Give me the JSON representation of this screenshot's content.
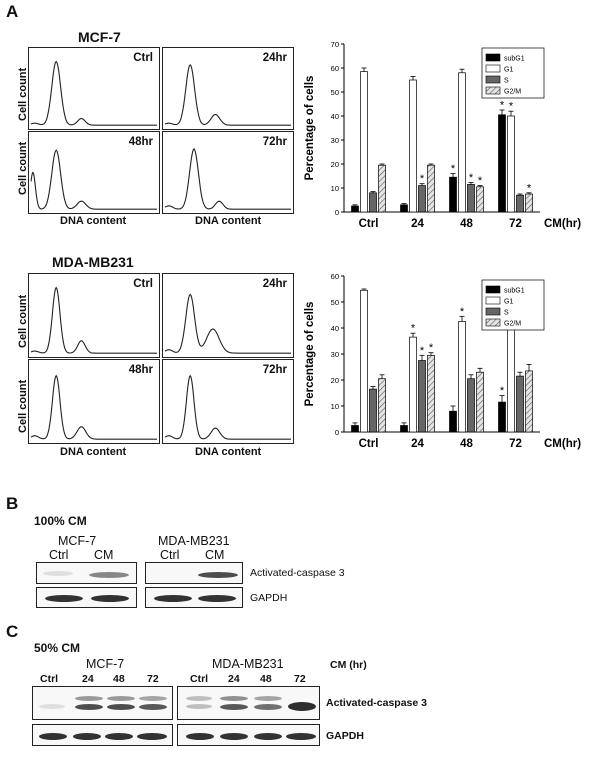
{
  "panel_a": {
    "letter": "A",
    "mcf7": {
      "title": "MCF-7",
      "hist_labels": [
        "Ctrl",
        "24hr",
        "48hr",
        "72hr"
      ],
      "y_label": "Cell count",
      "x_label": "DNA content"
    },
    "mda": {
      "title": "MDA-MB231",
      "hist_labels": [
        "Ctrl",
        "24hr",
        "48hr",
        "72hr"
      ],
      "y_label": "Cell count",
      "x_label": "DNA content"
    }
  },
  "chart_data": [
    {
      "type": "bar",
      "categories": [
        "Ctrl",
        "24",
        "48",
        "72"
      ],
      "x_unit": "CM(hr)",
      "ylabel": "Percentage of cells",
      "ylim": [
        0,
        70
      ],
      "yticks": [
        0,
        10,
        20,
        30,
        40,
        50,
        60,
        70
      ],
      "legend_position": "top-right",
      "series": [
        {
          "name": "subG1",
          "color": "#000000",
          "values": [
            2.5,
            3,
            14.5,
            40.5
          ],
          "errors": [
            0.5,
            0.5,
            1.5,
            2
          ],
          "sig": [
            false,
            false,
            true,
            true
          ]
        },
        {
          "name": "G1",
          "color": "#ffffff",
          "values": [
            58.5,
            55,
            58,
            40
          ],
          "errors": [
            1.5,
            1.5,
            1.5,
            2
          ],
          "sig": [
            false,
            false,
            false,
            true
          ]
        },
        {
          "name": "S",
          "color": "#666666",
          "values": [
            8,
            11,
            11.5,
            7
          ],
          "errors": [
            0.5,
            0.8,
            0.8,
            0.5
          ],
          "sig": [
            false,
            true,
            true,
            false
          ]
        },
        {
          "name": "G2/M",
          "color": "#cfcfcf",
          "values": [
            19.5,
            19.5,
            10.5,
            7.5
          ],
          "errors": [
            0.5,
            0.5,
            0.5,
            0.5
          ],
          "sig": [
            false,
            false,
            true,
            true
          ]
        }
      ]
    },
    {
      "type": "bar",
      "categories": [
        "Ctrl",
        "24",
        "48",
        "72"
      ],
      "x_unit": "CM(hr)",
      "ylabel": "Percentage of cells",
      "ylim": [
        0,
        60
      ],
      "yticks": [
        0,
        10,
        20,
        30,
        40,
        50,
        60
      ],
      "legend_position": "top-right",
      "series": [
        {
          "name": "subG1",
          "color": "#000000",
          "values": [
            2.5,
            2.5,
            8,
            11.5
          ],
          "errors": [
            1,
            1,
            2,
            2.5
          ],
          "sig": [
            false,
            false,
            false,
            true
          ]
        },
        {
          "name": "G1",
          "color": "#ffffff",
          "values": [
            54.5,
            36.5,
            42.5,
            39.5
          ],
          "errors": [
            0.5,
            1.5,
            2,
            2.5
          ],
          "sig": [
            false,
            true,
            true,
            true
          ]
        },
        {
          "name": "S",
          "color": "#666666",
          "values": [
            16.5,
            27.5,
            20.5,
            21.5
          ],
          "errors": [
            1,
            2,
            1.5,
            1.5
          ],
          "sig": [
            false,
            true,
            false,
            false
          ]
        },
        {
          "name": "G2/M",
          "color": "#cfcfcf",
          "values": [
            20.5,
            29.5,
            23,
            23.5
          ],
          "errors": [
            1.5,
            1,
            1.5,
            2.5
          ],
          "sig": [
            false,
            true,
            false,
            false
          ]
        }
      ]
    }
  ],
  "panel_b": {
    "letter": "B",
    "condition": "100% CM",
    "left": {
      "cell": "MCF-7",
      "lanes": [
        "Ctrl",
        "CM"
      ]
    },
    "right": {
      "cell": "MDA-MB231",
      "lanes": [
        "Ctrl",
        "CM"
      ]
    },
    "rows": [
      "Activated-caspase 3",
      "GAPDH"
    ]
  },
  "panel_c": {
    "letter": "C",
    "condition": "50% CM",
    "left": {
      "cell": "MCF-7",
      "lanes": [
        "Ctrl",
        "24",
        "48",
        "72"
      ]
    },
    "right": {
      "cell": "MDA-MB231",
      "lanes": [
        "Ctrl",
        "24",
        "48",
        "72"
      ]
    },
    "unit": "CM (hr)",
    "rows": [
      "Activated-caspase 3",
      "GAPDH"
    ]
  }
}
